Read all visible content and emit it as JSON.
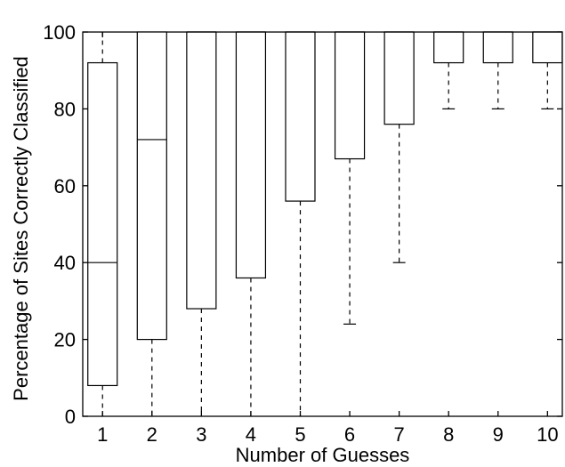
{
  "chart_data": {
    "type": "box",
    "xlabel": "Number of Guesses",
    "ylabel": "Percentage of Sites Correctly Classified",
    "ylim": [
      0,
      100
    ],
    "xlim": [
      0.6,
      10.3
    ],
    "yticks": [
      0,
      20,
      40,
      60,
      80,
      100
    ],
    "categories": [
      "1",
      "2",
      "3",
      "4",
      "5",
      "6",
      "7",
      "8",
      "9",
      "10"
    ],
    "boxes": [
      {
        "category": "1",
        "min": 0,
        "q1": 8,
        "median": 40,
        "q3": 92,
        "max": 100
      },
      {
        "category": "2",
        "min": 0,
        "q1": 20,
        "median": 72,
        "q3": 100,
        "max": 100
      },
      {
        "category": "3",
        "min": 0,
        "q1": 28,
        "median": 100,
        "q3": 100,
        "max": 100
      },
      {
        "category": "4",
        "min": 0,
        "q1": 36,
        "median": 100,
        "q3": 100,
        "max": 100
      },
      {
        "category": "5",
        "min": 0,
        "q1": 56,
        "median": 100,
        "q3": 100,
        "max": 100
      },
      {
        "category": "6",
        "min": 24,
        "q1": 67,
        "median": 100,
        "q3": 100,
        "max": 100
      },
      {
        "category": "7",
        "min": 40,
        "q1": 76,
        "median": 100,
        "q3": 100,
        "max": 100
      },
      {
        "category": "8",
        "min": 80,
        "q1": 92,
        "median": 100,
        "q3": 100,
        "max": 100
      },
      {
        "category": "9",
        "min": 80,
        "q1": 92,
        "median": 100,
        "q3": 100,
        "max": 100
      },
      {
        "category": "10",
        "min": 80,
        "q1": 92,
        "median": 100,
        "q3": 100,
        "max": 100
      }
    ],
    "grid": false,
    "colors": {
      "box": "#000000",
      "background": "#ffffff"
    }
  }
}
